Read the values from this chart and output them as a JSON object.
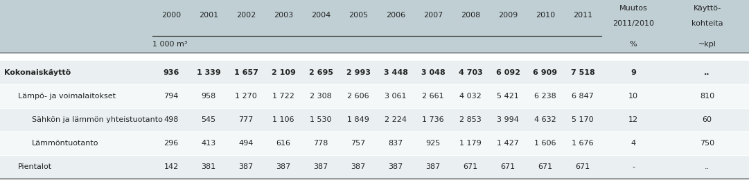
{
  "header_years": [
    "2000",
    "2001",
    "2002",
    "2003",
    "2004",
    "2005",
    "2006",
    "2007",
    "2008",
    "2009",
    "2010",
    "2011"
  ],
  "header_col1_line1": "Muutos",
  "header_col1_line2": "2011/2010",
  "header_col2_line1": "Käyttö-",
  "header_col2_line2": "kohteita",
  "subheader_unit": "1 000 m³",
  "subheader_col1": "%",
  "subheader_col2": "~kpl",
  "rows": [
    {
      "label": "Kokonaiskäyttö",
      "values": [
        "936",
        "1 339",
        "1 657",
        "2 109",
        "2 695",
        "2 993",
        "3 448",
        "3 048",
        "4 703",
        "6 092",
        "6 909",
        "7 518"
      ],
      "col1": "9",
      "col2": "..",
      "bold": true,
      "indent": 0,
      "italic": false
    },
    {
      "label": "Lämpö- ja voimalaitokset",
      "values": [
        "794",
        "958",
        "1 270",
        "1 722",
        "2 308",
        "2 606",
        "3 061",
        "2 661",
        "4 032",
        "5 421",
        "6 238",
        "6 847"
      ],
      "col1": "10",
      "col2": "810",
      "bold": false,
      "indent": 1,
      "italic": false
    },
    {
      "label": "Sähkön ja lämmön yhteistuotanto",
      "values": [
        "498",
        "545",
        "777",
        "1 106",
        "1 530",
        "1 849",
        "2 224",
        "1 736",
        "2 853",
        "3 994",
        "4 632",
        "5 170"
      ],
      "col1": "12",
      "col2": "60",
      "bold": false,
      "indent": 2,
      "italic": false
    },
    {
      "label": "Lämmöntuotanto",
      "values": [
        "296",
        "413",
        "494",
        "616",
        "778",
        "757",
        "837",
        "925",
        "1 179",
        "1 427",
        "1 606",
        "1 676"
      ],
      "col1": "4",
      "col2": "750",
      "bold": false,
      "indent": 2,
      "italic": false
    },
    {
      "label": "Pientalot",
      "values": [
        "142",
        "381",
        "387",
        "387",
        "387",
        "387",
        "387",
        "387",
        "671",
        "671",
        "671",
        "671"
      ],
      "col1": "-",
      "col2": "..",
      "bold": false,
      "indent": 1,
      "italic": false
    }
  ],
  "header_bg": "#bfcfd4",
  "row_bg_alt1": "#eaf0f2",
  "row_bg_alt2": "#f4f8f9",
  "line_color": "#888888",
  "text_color": "#222222",
  "blue_text": "#3a6ea5",
  "font_size": 8.0,
  "header_font_size": 8.0,
  "fig_w": 10.81,
  "fig_h": 2.76,
  "dpi": 100
}
